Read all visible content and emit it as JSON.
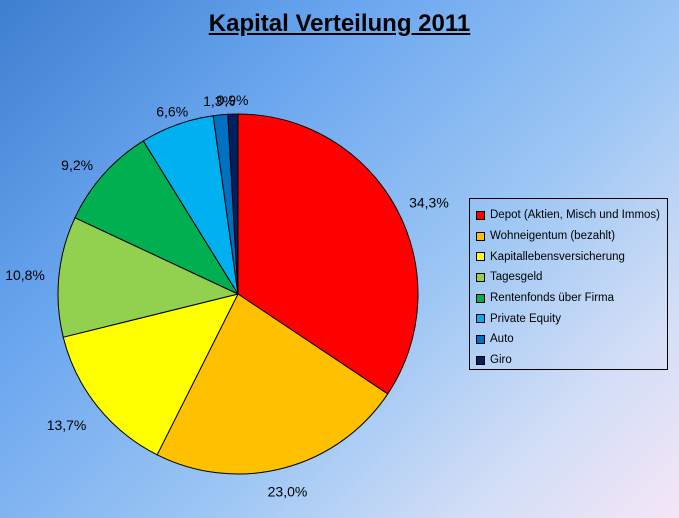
{
  "chart_data": {
    "type": "pie",
    "title": "Kapital Verteilung 2011",
    "categories": [
      "Depot (Aktien, Misch und Immos)",
      "Wohneigentum (bezahlt)",
      "Kapitallebensversicherung",
      "Tagesgeld",
      "Rentenfonds über Firma",
      "Private Equity",
      "Auto",
      "Giro"
    ],
    "values": [
      34.3,
      23.0,
      13.7,
      10.8,
      9.2,
      6.6,
      1.3,
      0.9
    ],
    "labels": [
      "34,3%",
      "23,0%",
      "13,7%",
      "10,8%",
      "9,2%",
      "6,6%",
      "1,3%",
      "0,9%"
    ],
    "colors": [
      "#ff0000",
      "#ffc000",
      "#ffff00",
      "#92d050",
      "#00b050",
      "#00b0f0",
      "#0070c0",
      "#002060"
    ],
    "legend_position": "right"
  }
}
